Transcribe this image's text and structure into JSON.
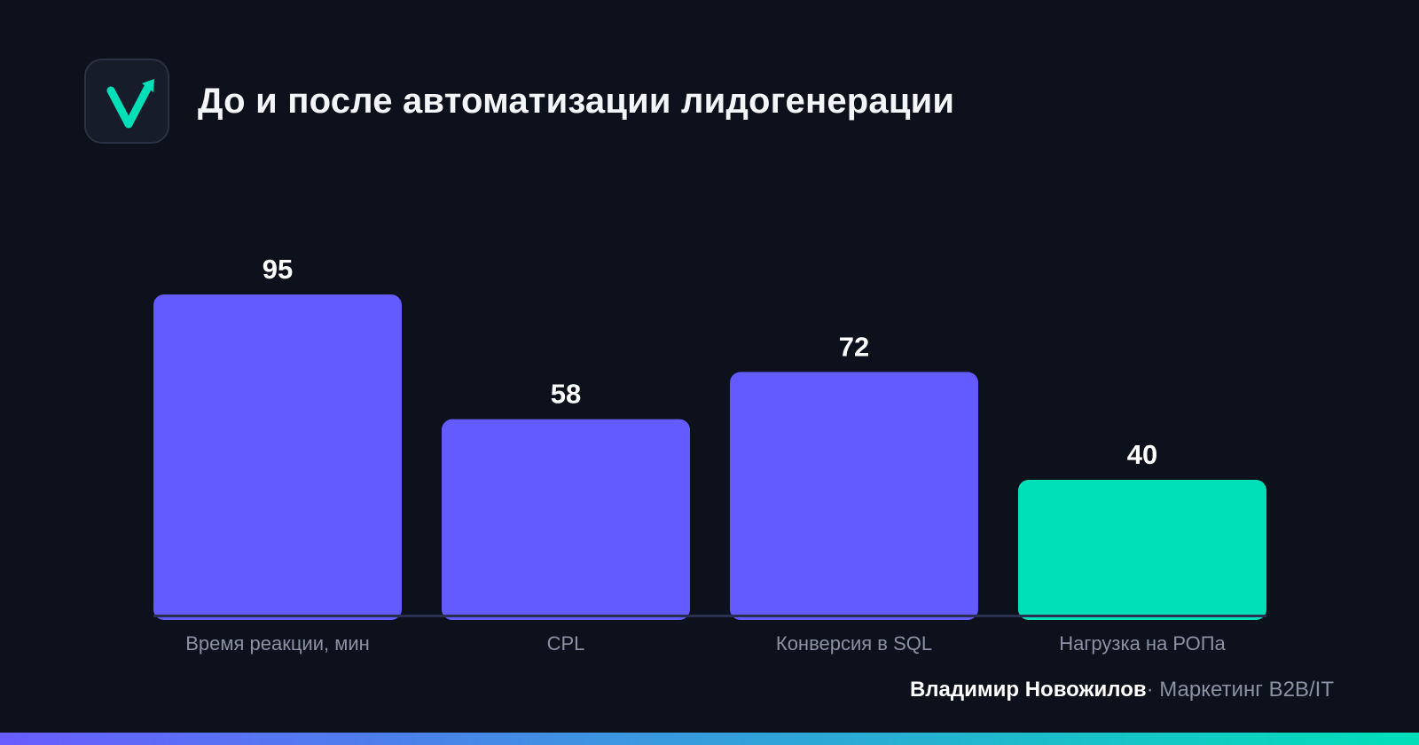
{
  "header": {
    "title": "До и после автоматизации лидогенерации",
    "logo_icon": "checkmark-arrow-icon"
  },
  "chart_data": {
    "type": "bar",
    "title": "До и после автоматизации лидогенерации",
    "categories": [
      "Время реакции, мин",
      "CPL",
      "Конверсия в SQL",
      "Нагрузка на РОПа"
    ],
    "values": [
      95,
      58,
      72,
      40
    ],
    "value_labels": [
      "95",
      "58",
      "72",
      "40"
    ],
    "ylim": [
      0,
      100
    ],
    "grid": false,
    "legend": "none",
    "colors": [
      "#635bff",
      "#635bff",
      "#635bff",
      "#00e0b8"
    ]
  },
  "footer": {
    "author": "Владимир Новожилов",
    "separator": "·",
    "subtitle": "Маркетинг B2B/IT"
  },
  "theme": {
    "background": "#0c111b",
    "accent_primary": "#635bff",
    "accent_highlight": "#00e0b8",
    "axis_color": "#2a3150",
    "label_color": "#8a92a3"
  }
}
